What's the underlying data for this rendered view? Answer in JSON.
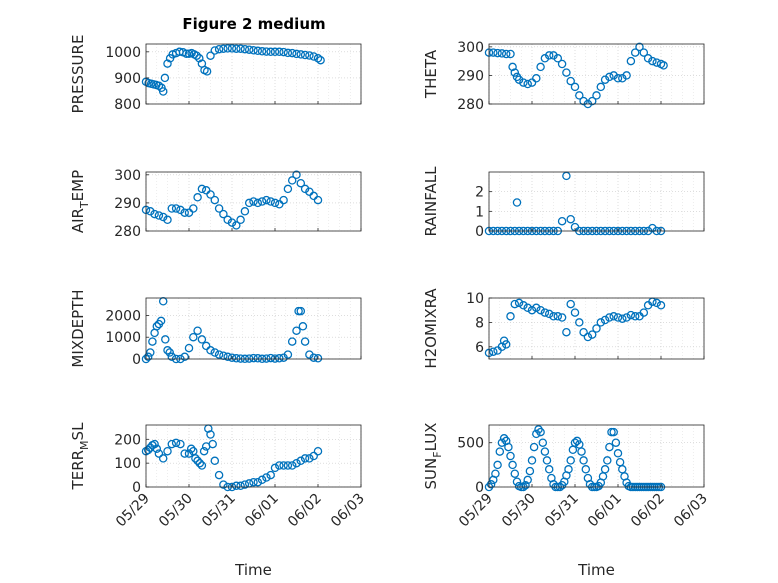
{
  "figure": {
    "title": "Figure 2 medium"
  },
  "style": {
    "marker_color": "#0072BD",
    "axis_color": "#262626",
    "grid_color": "#c9c9c9",
    "background": "#ffffff"
  },
  "x_ticks": [
    "05/29",
    "05/30",
    "05/31",
    "06/01",
    "06/02",
    "06/03"
  ],
  "chart_data": [
    {
      "type": "scatter",
      "title": "Figure 2 medium",
      "ylabel": "PRESSURE",
      "xlabel": "",
      "xlim": [
        0,
        5
      ],
      "ylim": [
        800,
        1030
      ],
      "yticks": [
        800,
        900,
        1000
      ],
      "grid": true,
      "x": [
        0,
        0.06,
        0.12,
        0.18,
        0.24,
        0.3,
        0.36,
        0.4,
        0.44,
        0.5,
        0.56,
        0.62,
        0.7,
        0.78,
        0.86,
        0.94,
        1.0,
        1.06,
        1.12,
        1.18,
        1.24,
        1.3,
        1.36,
        1.42,
        1.5,
        1.6,
        1.7,
        1.8,
        1.9,
        2.0,
        2.1,
        2.2,
        2.3,
        2.4,
        2.5,
        2.6,
        2.7,
        2.8,
        2.9,
        3.0,
        3.1,
        3.2,
        3.3,
        3.4,
        3.5,
        3.6,
        3.7,
        3.8,
        3.9,
        4.0,
        4.06
      ],
      "y": [
        885,
        880,
        878,
        875,
        873,
        870,
        862,
        848,
        900,
        955,
        975,
        990,
        995,
        1000,
        998,
        993,
        993,
        995,
        990,
        985,
        975,
        955,
        930,
        925,
        985,
        1005,
        1010,
        1012,
        1013,
        1013,
        1012,
        1012,
        1010,
        1008,
        1006,
        1004,
        1002,
        1001,
        1000,
        1000,
        1000,
        999,
        996,
        995,
        992,
        990,
        988,
        986,
        982,
        975,
        968
      ]
    },
    {
      "type": "scatter",
      "ylabel": "THETA",
      "xlabel": "",
      "xlim": [
        0,
        5
      ],
      "ylim": [
        280,
        301
      ],
      "yticks": [
        280,
        290,
        300
      ],
      "grid": true,
      "x": [
        0,
        0.1,
        0.2,
        0.3,
        0.4,
        0.5,
        0.55,
        0.6,
        0.65,
        0.7,
        0.8,
        0.9,
        1.0,
        1.1,
        1.2,
        1.3,
        1.4,
        1.5,
        1.6,
        1.7,
        1.8,
        1.9,
        2.0,
        2.1,
        2.2,
        2.3,
        2.4,
        2.5,
        2.6,
        2.7,
        2.8,
        2.9,
        3.0,
        3.1,
        3.2,
        3.3,
        3.4,
        3.5,
        3.6,
        3.7,
        3.8,
        3.9,
        4.0,
        4.06
      ],
      "y": [
        298,
        298,
        297.8,
        297.7,
        297.5,
        297.5,
        293,
        291,
        289.5,
        288.5,
        287.5,
        287,
        287.5,
        289,
        293,
        296,
        297,
        297,
        296,
        294,
        291,
        288,
        286,
        283,
        281,
        280,
        281,
        283,
        286,
        288.5,
        289.5,
        290,
        289,
        289,
        290,
        295,
        298,
        300,
        298,
        296,
        295,
        294.5,
        294,
        293.5
      ]
    },
    {
      "type": "scatter",
      "ylabel": "AIR_TEMP",
      "xlabel": "",
      "xlim": [
        0,
        5
      ],
      "ylim": [
        280,
        301
      ],
      "yticks": [
        280,
        290,
        300
      ],
      "grid": true,
      "x": [
        0,
        0.1,
        0.2,
        0.3,
        0.4,
        0.5,
        0.6,
        0.7,
        0.8,
        0.9,
        1.0,
        1.1,
        1.2,
        1.3,
        1.4,
        1.5,
        1.6,
        1.7,
        1.8,
        1.9,
        2.0,
        2.1,
        2.2,
        2.3,
        2.4,
        2.5,
        2.6,
        2.7,
        2.8,
        2.9,
        3.0,
        3.1,
        3.2,
        3.3,
        3.4,
        3.5,
        3.6,
        3.7,
        3.8,
        3.9,
        4.0
      ],
      "y": [
        287.5,
        287,
        286,
        285.5,
        285,
        284,
        288,
        288,
        287.5,
        286.5,
        286.5,
        288,
        292,
        295,
        294.5,
        293,
        291,
        288,
        286,
        284,
        283,
        282,
        284,
        287,
        290,
        290.5,
        290,
        290.5,
        291,
        290.5,
        290,
        289.5,
        291,
        295,
        298,
        300,
        297,
        295,
        294,
        292.5,
        291
      ]
    },
    {
      "type": "scatter",
      "ylabel": "RAINFALL",
      "xlabel": "",
      "xlim": [
        0,
        5
      ],
      "ylim": [
        0,
        3
      ],
      "yticks": [
        0,
        1,
        2
      ],
      "grid": true,
      "x": [
        0,
        0.1,
        0.2,
        0.3,
        0.4,
        0.5,
        0.6,
        0.65,
        0.7,
        0.8,
        0.9,
        1.0,
        1.1,
        1.2,
        1.3,
        1.4,
        1.5,
        1.6,
        1.7,
        1.8,
        1.9,
        2.0,
        2.1,
        2.2,
        2.3,
        2.4,
        2.5,
        2.6,
        2.7,
        2.8,
        2.9,
        3.0,
        3.1,
        3.2,
        3.3,
        3.4,
        3.5,
        3.6,
        3.7,
        3.8,
        3.9,
        4.0
      ],
      "y": [
        0,
        0,
        0,
        0,
        0,
        0,
        0,
        1.45,
        0,
        0,
        0,
        0,
        0,
        0,
        0,
        0,
        0,
        0,
        0.5,
        2.8,
        0.6,
        0.2,
        0,
        0,
        0,
        0,
        0,
        0,
        0,
        0,
        0,
        0,
        0,
        0,
        0,
        0,
        0,
        0,
        0,
        0.15,
        0,
        0
      ]
    },
    {
      "type": "scatter",
      "ylabel": "MIXDEPTH",
      "xlabel": "",
      "xlim": [
        0,
        5
      ],
      "ylim": [
        0,
        2800
      ],
      "yticks": [
        0,
        1000,
        2000
      ],
      "grid": true,
      "x": [
        0,
        0.05,
        0.1,
        0.15,
        0.2,
        0.25,
        0.3,
        0.35,
        0.4,
        0.45,
        0.5,
        0.55,
        0.6,
        0.7,
        0.8,
        0.9,
        1.0,
        1.1,
        1.2,
        1.3,
        1.4,
        1.5,
        1.6,
        1.7,
        1.8,
        1.9,
        2.0,
        2.1,
        2.2,
        2.3,
        2.4,
        2.5,
        2.6,
        2.7,
        2.8,
        2.9,
        3.0,
        3.1,
        3.2,
        3.3,
        3.4,
        3.5,
        3.55,
        3.6,
        3.65,
        3.7,
        3.8,
        3.9,
        4.0
      ],
      "y": [
        0,
        100,
        300,
        800,
        1200,
        1500,
        1600,
        1750,
        2650,
        900,
        400,
        300,
        100,
        0,
        0,
        100,
        500,
        1000,
        1300,
        900,
        600,
        400,
        300,
        200,
        150,
        100,
        60,
        30,
        20,
        10,
        20,
        40,
        30,
        10,
        20,
        40,
        20,
        30,
        60,
        200,
        800,
        1300,
        2200,
        2200,
        1500,
        800,
        200,
        60,
        30
      ]
    },
    {
      "type": "scatter",
      "ylabel": "H2OMIXRA",
      "xlabel": "",
      "xlim": [
        0,
        5
      ],
      "ylim": [
        5,
        10
      ],
      "yticks": [
        6,
        8,
        10
      ],
      "grid": true,
      "x": [
        0,
        0.1,
        0.2,
        0.3,
        0.35,
        0.4,
        0.5,
        0.6,
        0.7,
        0.8,
        0.9,
        1.0,
        1.1,
        1.2,
        1.3,
        1.4,
        1.5,
        1.6,
        1.7,
        1.8,
        1.9,
        2.0,
        2.1,
        2.2,
        2.3,
        2.4,
        2.5,
        2.6,
        2.7,
        2.8,
        2.9,
        3.0,
        3.1,
        3.2,
        3.3,
        3.4,
        3.5,
        3.6,
        3.7,
        3.8,
        3.9,
        4.0
      ],
      "y": [
        5.5,
        5.6,
        5.7,
        6.0,
        6.5,
        6.2,
        8.5,
        9.5,
        9.6,
        9.4,
        9.2,
        9.0,
        9.2,
        9.0,
        8.8,
        8.7,
        8.5,
        8.5,
        8.4,
        7.2,
        9.5,
        8.8,
        8.0,
        7.2,
        6.8,
        7.0,
        7.5,
        8.0,
        8.2,
        8.4,
        8.5,
        8.4,
        8.3,
        8.4,
        8.6,
        8.5,
        8.5,
        8.8,
        9.4,
        9.7,
        9.6,
        9.4
      ]
    },
    {
      "type": "scatter",
      "ylabel": "TERR_MSL",
      "xlabel": "Time",
      "xlim": [
        0,
        5
      ],
      "ylim": [
        0,
        260
      ],
      "yticks": [
        0,
        100,
        200
      ],
      "grid": true,
      "x": [
        0,
        0.05,
        0.1,
        0.15,
        0.2,
        0.25,
        0.3,
        0.4,
        0.5,
        0.6,
        0.7,
        0.8,
        0.9,
        1.0,
        1.05,
        1.1,
        1.15,
        1.2,
        1.25,
        1.3,
        1.35,
        1.4,
        1.45,
        1.5,
        1.55,
        1.6,
        1.7,
        1.8,
        1.9,
        2.0,
        2.1,
        2.2,
        2.3,
        2.4,
        2.5,
        2.6,
        2.7,
        2.8,
        2.9,
        3.0,
        3.1,
        3.2,
        3.3,
        3.4,
        3.5,
        3.6,
        3.7,
        3.8,
        3.9,
        4.0
      ],
      "y": [
        150,
        155,
        165,
        175,
        180,
        160,
        140,
        120,
        150,
        180,
        185,
        180,
        140,
        140,
        160,
        150,
        120,
        110,
        100,
        90,
        150,
        170,
        245,
        220,
        180,
        110,
        50,
        10,
        0,
        0,
        5,
        5,
        10,
        15,
        20,
        20,
        30,
        40,
        50,
        80,
        90,
        90,
        90,
        90,
        100,
        110,
        120,
        120,
        130,
        150
      ]
    },
    {
      "type": "scatter",
      "ylabel": "SUN_FLUX",
      "xlabel": "Time",
      "xlim": [
        0,
        5
      ],
      "ylim": [
        0,
        700
      ],
      "yticks": [
        0,
        500
      ],
      "grid": true,
      "x": [
        0,
        0.05,
        0.1,
        0.15,
        0.2,
        0.25,
        0.3,
        0.35,
        0.4,
        0.45,
        0.5,
        0.55,
        0.6,
        0.65,
        0.7,
        0.75,
        0.8,
        0.85,
        0.9,
        0.95,
        1.0,
        1.05,
        1.1,
        1.15,
        1.2,
        1.25,
        1.3,
        1.35,
        1.4,
        1.45,
        1.5,
        1.55,
        1.6,
        1.65,
        1.7,
        1.75,
        1.8,
        1.85,
        1.9,
        1.95,
        2.0,
        2.05,
        2.1,
        2.15,
        2.2,
        2.25,
        2.3,
        2.35,
        2.4,
        2.45,
        2.5,
        2.55,
        2.6,
        2.65,
        2.7,
        2.75,
        2.8,
        2.85,
        2.9,
        2.95,
        3.0,
        3.05,
        3.1,
        3.15,
        3.2,
        3.25,
        3.3,
        3.35,
        3.4,
        3.45,
        3.5,
        3.55,
        3.6,
        3.65,
        3.7,
        3.75,
        3.8,
        3.85,
        3.9,
        3.95,
        4.0
      ],
      "y": [
        0,
        30,
        80,
        150,
        250,
        400,
        500,
        550,
        520,
        450,
        350,
        250,
        150,
        60,
        10,
        0,
        0,
        20,
        80,
        180,
        300,
        450,
        600,
        650,
        620,
        500,
        400,
        300,
        200,
        100,
        30,
        0,
        0,
        0,
        20,
        60,
        130,
        200,
        300,
        420,
        500,
        520,
        480,
        400,
        300,
        200,
        100,
        30,
        0,
        0,
        0,
        10,
        50,
        120,
        200,
        300,
        450,
        620,
        620,
        500,
        380,
        280,
        200,
        120,
        50,
        10,
        0,
        0,
        0,
        0,
        0,
        0,
        0,
        0,
        0,
        0,
        0,
        0,
        0,
        0,
        0
      ]
    }
  ]
}
